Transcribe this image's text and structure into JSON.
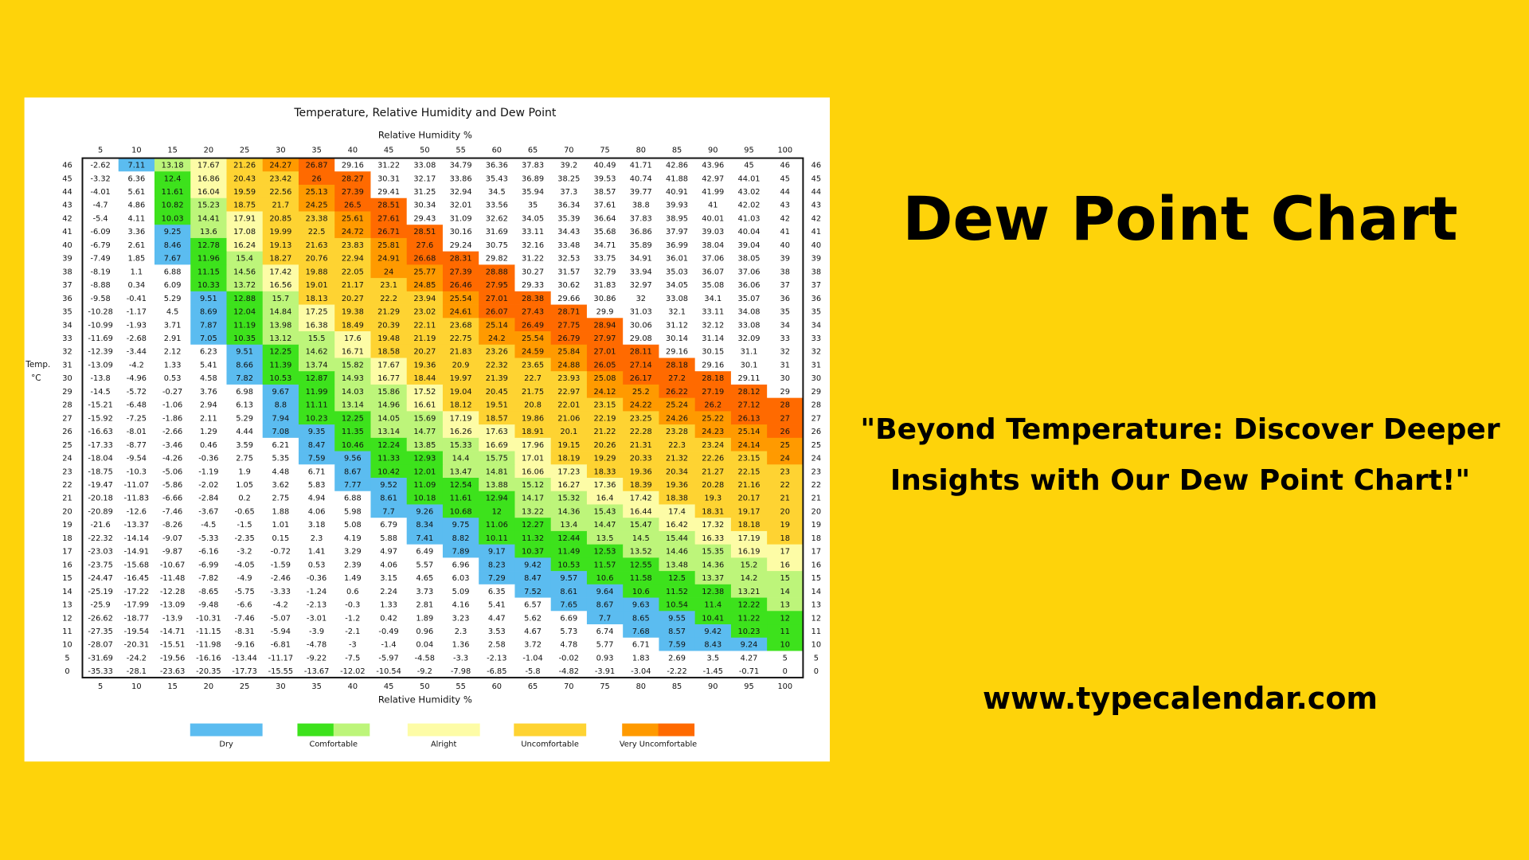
{
  "header": {
    "title": "Dew Point Chart",
    "tagline": "\"Beyond Temperature: Discover Deeper Insights with Our Dew Point Chart!\"",
    "url": "www.typecalendar.com"
  },
  "chart_data": {
    "type": "heatmap",
    "title": "Temperature, Relative Humidity and Dew Point",
    "x_label": "Relative Humidity %",
    "y_label": [
      "Temp.",
      "°C"
    ],
    "columns": [
      5,
      10,
      15,
      20,
      25,
      30,
      35,
      40,
      45,
      50,
      55,
      60,
      65,
      70,
      75,
      80,
      85,
      90,
      95,
      100
    ],
    "rows": [
      46,
      45,
      44,
      43,
      42,
      41,
      40,
      39,
      38,
      37,
      36,
      35,
      34,
      33,
      32,
      31,
      30,
      29,
      28,
      27,
      26,
      25,
      24,
      23,
      22,
      21,
      20,
      19,
      18,
      17,
      16,
      15,
      14,
      13,
      12,
      11,
      10,
      5,
      0
    ],
    "values": [
      [
        -2.62,
        7.11,
        13.18,
        17.67,
        21.26,
        24.27,
        26.87,
        29.16,
        31.22,
        33.08,
        34.79,
        36.36,
        37.83,
        39.2,
        40.49,
        41.71,
        42.86,
        43.96,
        45,
        46
      ],
      [
        -3.32,
        6.36,
        12.4,
        16.86,
        20.43,
        23.42,
        26,
        28.27,
        30.31,
        32.17,
        33.86,
        35.43,
        36.89,
        38.25,
        39.53,
        40.74,
        41.88,
        42.97,
        44.01,
        45
      ],
      [
        -4.01,
        5.61,
        11.61,
        16.04,
        19.59,
        22.56,
        25.13,
        27.39,
        29.41,
        31.25,
        32.94,
        34.5,
        35.94,
        37.3,
        38.57,
        39.77,
        40.91,
        41.99,
        43.02,
        44
      ],
      [
        -4.7,
        4.86,
        10.82,
        15.23,
        18.75,
        21.7,
        24.25,
        26.5,
        28.51,
        30.34,
        32.01,
        33.56,
        35,
        36.34,
        37.61,
        38.8,
        39.93,
        41,
        42.02,
        43
      ],
      [
        -5.4,
        4.11,
        10.03,
        14.41,
        17.91,
        20.85,
        23.38,
        25.61,
        27.61,
        29.43,
        31.09,
        32.62,
        34.05,
        35.39,
        36.64,
        37.83,
        38.95,
        40.01,
        41.03,
        42
      ],
      [
        -6.09,
        3.36,
        9.25,
        13.6,
        17.08,
        19.99,
        22.5,
        24.72,
        26.71,
        28.51,
        30.16,
        31.69,
        33.11,
        34.43,
        35.68,
        36.86,
        37.97,
        39.03,
        40.04,
        41
      ],
      [
        -6.79,
        2.61,
        8.46,
        12.78,
        16.24,
        19.13,
        21.63,
        23.83,
        25.81,
        27.6,
        29.24,
        30.75,
        32.16,
        33.48,
        34.71,
        35.89,
        36.99,
        38.04,
        39.04,
        40
      ],
      [
        -7.49,
        1.85,
        7.67,
        11.96,
        15.4,
        18.27,
        20.76,
        22.94,
        24.91,
        26.68,
        28.31,
        29.82,
        31.22,
        32.53,
        33.75,
        34.91,
        36.01,
        37.06,
        38.05,
        39
      ],
      [
        -8.19,
        1.1,
        6.88,
        11.15,
        14.56,
        17.42,
        19.88,
        22.05,
        24,
        25.77,
        27.39,
        28.88,
        30.27,
        31.57,
        32.79,
        33.94,
        35.03,
        36.07,
        37.06,
        38
      ],
      [
        -8.88,
        0.34,
        6.09,
        10.33,
        13.72,
        16.56,
        19.01,
        21.17,
        23.1,
        24.85,
        26.46,
        27.95,
        29.33,
        30.62,
        31.83,
        32.97,
        34.05,
        35.08,
        36.06,
        37
      ],
      [
        -9.58,
        -0.41,
        5.29,
        9.51,
        12.88,
        15.7,
        18.13,
        20.27,
        22.2,
        23.94,
        25.54,
        27.01,
        28.38,
        29.66,
        30.86,
        32,
        33.08,
        34.1,
        35.07,
        36
      ],
      [
        -10.28,
        -1.17,
        4.5,
        8.69,
        12.04,
        14.84,
        17.25,
        19.38,
        21.29,
        23.02,
        24.61,
        26.07,
        27.43,
        28.71,
        29.9,
        31.03,
        32.1,
        33.11,
        34.08,
        35
      ],
      [
        -10.99,
        -1.93,
        3.71,
        7.87,
        11.19,
        13.98,
        16.38,
        18.49,
        20.39,
        22.11,
        23.68,
        25.14,
        26.49,
        27.75,
        28.94,
        30.06,
        31.12,
        32.12,
        33.08,
        34
      ],
      [
        -11.69,
        -2.68,
        2.91,
        7.05,
        10.35,
        13.12,
        15.5,
        17.6,
        19.48,
        21.19,
        22.75,
        24.2,
        25.54,
        26.79,
        27.97,
        29.08,
        30.14,
        31.14,
        32.09,
        33
      ],
      [
        -12.39,
        -3.44,
        2.12,
        6.23,
        9.51,
        12.25,
        14.62,
        16.71,
        18.58,
        20.27,
        21.83,
        23.26,
        24.59,
        25.84,
        27.01,
        28.11,
        29.16,
        30.15,
        31.1,
        32
      ],
      [
        -13.09,
        -4.2,
        1.33,
        5.41,
        8.66,
        11.39,
        13.74,
        15.82,
        17.67,
        19.36,
        20.9,
        22.32,
        23.65,
        24.88,
        26.05,
        27.14,
        28.18,
        29.16,
        30.1,
        31
      ],
      [
        -13.8,
        -4.96,
        0.53,
        4.58,
        7.82,
        10.53,
        12.87,
        14.93,
        16.77,
        18.44,
        19.97,
        21.39,
        22.7,
        23.93,
        25.08,
        26.17,
        27.2,
        28.18,
        29.11,
        30
      ],
      [
        -14.5,
        -5.72,
        -0.27,
        3.76,
        6.98,
        9.67,
        11.99,
        14.03,
        15.86,
        17.52,
        19.04,
        20.45,
        21.75,
        22.97,
        24.12,
        25.2,
        26.22,
        27.19,
        28.12,
        29
      ],
      [
        -15.21,
        -6.48,
        -1.06,
        2.94,
        6.13,
        8.8,
        11.11,
        13.14,
        14.96,
        16.61,
        18.12,
        19.51,
        20.8,
        22.01,
        23.15,
        24.22,
        25.24,
        26.2,
        27.12,
        28
      ],
      [
        -15.92,
        -7.25,
        -1.86,
        2.11,
        5.29,
        7.94,
        10.23,
        12.25,
        14.05,
        15.69,
        17.19,
        18.57,
        19.86,
        21.06,
        22.19,
        23.25,
        24.26,
        25.22,
        26.13,
        27
      ],
      [
        -16.63,
        -8.01,
        -2.66,
        1.29,
        4.44,
        7.08,
        9.35,
        11.35,
        13.14,
        14.77,
        16.26,
        17.63,
        18.91,
        20.1,
        21.22,
        22.28,
        23.28,
        24.23,
        25.14,
        26
      ],
      [
        -17.33,
        -8.77,
        -3.46,
        0.46,
        3.59,
        6.21,
        8.47,
        10.46,
        12.24,
        13.85,
        15.33,
        16.69,
        17.96,
        19.15,
        20.26,
        21.31,
        22.3,
        23.24,
        24.14,
        25
      ],
      [
        -18.04,
        -9.54,
        -4.26,
        -0.36,
        2.75,
        5.35,
        7.59,
        9.56,
        11.33,
        12.93,
        14.4,
        15.75,
        17.01,
        18.19,
        19.29,
        20.33,
        21.32,
        22.26,
        23.15,
        24
      ],
      [
        -18.75,
        -10.3,
        -5.06,
        -1.19,
        1.9,
        4.48,
        6.71,
        8.67,
        10.42,
        12.01,
        13.47,
        14.81,
        16.06,
        17.23,
        18.33,
        19.36,
        20.34,
        21.27,
        22.15,
        23
      ],
      [
        -19.47,
        -11.07,
        -5.86,
        -2.02,
        1.05,
        3.62,
        5.83,
        7.77,
        9.52,
        11.09,
        12.54,
        13.88,
        15.12,
        16.27,
        17.36,
        18.39,
        19.36,
        20.28,
        21.16,
        22
      ],
      [
        -20.18,
        -11.83,
        -6.66,
        -2.84,
        0.2,
        2.75,
        4.94,
        6.88,
        8.61,
        10.18,
        11.61,
        12.94,
        14.17,
        15.32,
        16.4,
        17.42,
        18.38,
        19.3,
        20.17,
        21
      ],
      [
        -20.89,
        -12.6,
        -7.46,
        -3.67,
        -0.65,
        1.88,
        4.06,
        5.98,
        7.7,
        9.26,
        10.68,
        12,
        13.22,
        14.36,
        15.43,
        16.44,
        17.4,
        18.31,
        19.17,
        20
      ],
      [
        -21.6,
        -13.37,
        -8.26,
        -4.5,
        -1.5,
        1.01,
        3.18,
        5.08,
        6.79,
        8.34,
        9.75,
        11.06,
        12.27,
        13.4,
        14.47,
        15.47,
        16.42,
        17.32,
        18.18,
        19
      ],
      [
        -22.32,
        -14.14,
        -9.07,
        -5.33,
        -2.35,
        0.15,
        2.3,
        4.19,
        5.88,
        7.41,
        8.82,
        10.11,
        11.32,
        12.44,
        13.5,
        14.5,
        15.44,
        16.33,
        17.19,
        18
      ],
      [
        -23.03,
        -14.91,
        -9.87,
        -6.16,
        -3.2,
        -0.72,
        1.41,
        3.29,
        4.97,
        6.49,
        7.89,
        9.17,
        10.37,
        11.49,
        12.53,
        13.52,
        14.46,
        15.35,
        16.19,
        17
      ],
      [
        -23.75,
        -15.68,
        -10.67,
        -6.99,
        -4.05,
        -1.59,
        0.53,
        2.39,
        4.06,
        5.57,
        6.96,
        8.23,
        9.42,
        10.53,
        11.57,
        12.55,
        13.48,
        14.36,
        15.2,
        16
      ],
      [
        -24.47,
        -16.45,
        -11.48,
        -7.82,
        -4.9,
        -2.46,
        -0.36,
        1.49,
        3.15,
        4.65,
        6.03,
        7.29,
        8.47,
        9.57,
        10.6,
        11.58,
        12.5,
        13.37,
        14.2,
        15
      ],
      [
        -25.19,
        -17.22,
        -12.28,
        -8.65,
        -5.75,
        -3.33,
        -1.24,
        0.6,
        2.24,
        3.73,
        5.09,
        6.35,
        7.52,
        8.61,
        9.64,
        10.6,
        11.52,
        12.38,
        13.21,
        14
      ],
      [
        -25.9,
        -17.99,
        -13.09,
        -9.48,
        -6.6,
        -4.2,
        -2.13,
        -0.3,
        1.33,
        2.81,
        4.16,
        5.41,
        6.57,
        7.65,
        8.67,
        9.63,
        10.54,
        11.4,
        12.22,
        13
      ],
      [
        -26.62,
        -18.77,
        -13.9,
        -10.31,
        -7.46,
        -5.07,
        -3.01,
        -1.2,
        0.42,
        1.89,
        3.23,
        4.47,
        5.62,
        6.69,
        7.7,
        8.65,
        9.55,
        10.41,
        11.22,
        12
      ],
      [
        -27.35,
        -19.54,
        -14.71,
        -11.15,
        -8.31,
        -5.94,
        -3.9,
        -2.1,
        -0.49,
        0.96,
        2.3,
        3.53,
        4.67,
        5.73,
        6.74,
        7.68,
        8.57,
        9.42,
        10.23,
        11
      ],
      [
        -28.07,
        -20.31,
        -15.51,
        -11.98,
        -9.16,
        -6.81,
        -4.78,
        -3,
        -1.4,
        0.04,
        1.36,
        2.58,
        3.72,
        4.78,
        5.77,
        6.71,
        7.59,
        8.43,
        9.24,
        10
      ],
      [
        -31.69,
        -24.2,
        -19.56,
        -16.16,
        -13.44,
        -11.17,
        -9.22,
        -7.5,
        -5.97,
        -4.58,
        -3.3,
        -2.13,
        -1.04,
        -0.02,
        0.93,
        1.83,
        2.69,
        3.5,
        4.27,
        5
      ],
      [
        -35.33,
        -28.1,
        -23.63,
        -20.35,
        -17.73,
        -15.55,
        -13.67,
        -12.02,
        -10.54,
        -9.2,
        -7.98,
        -6.85,
        -5.8,
        -4.82,
        -3.91,
        -3.04,
        -2.22,
        -1.45,
        -0.71,
        0
      ]
    ],
    "color_steps": [
      {
        "min": 7,
        "color": "#5bbcf0"
      },
      {
        "min": 10,
        "color": "#3de21c"
      },
      {
        "min": 13,
        "color": "#bdf57a"
      },
      {
        "min": 16,
        "color": "#fdfca6"
      },
      {
        "min": 18,
        "color": "#fed332"
      },
      {
        "min": 24,
        "color": "#ff9a00"
      },
      {
        "min": 26,
        "color": "#ff6a00"
      },
      {
        "min": 29,
        "color": "#ffffff"
      }
    ],
    "legend": [
      {
        "name": "Dry",
        "colors": [
          "#5bbcf0"
        ]
      },
      {
        "name": "Comfortable",
        "colors": [
          "#3de21c",
          "#bdf57a"
        ]
      },
      {
        "name": "Alright",
        "colors": [
          "#fdfca6"
        ]
      },
      {
        "name": "Uncomfortable",
        "colors": [
          "#fed332"
        ]
      },
      {
        "name": "Very Uncomfortable",
        "colors": [
          "#ff9a00",
          "#ff6a00"
        ]
      }
    ]
  }
}
